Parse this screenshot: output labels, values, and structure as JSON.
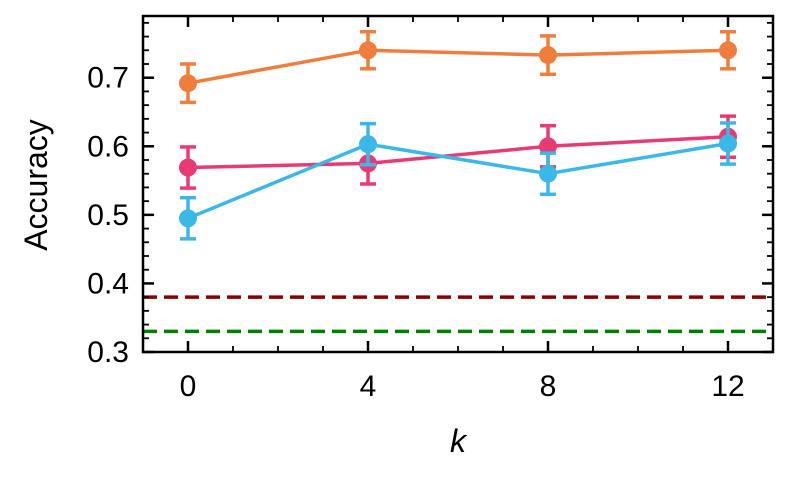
{
  "chart_data": {
    "type": "line",
    "title": "",
    "xlabel": "k",
    "ylabel": "Accuracy",
    "x": [
      0,
      4,
      8,
      12
    ],
    "xticks": [
      0,
      4,
      8,
      12
    ],
    "xtick_labels": [
      "0",
      "4",
      "8",
      "12"
    ],
    "xlim": [
      -1,
      13
    ],
    "yticks": [
      0.3,
      0.4,
      0.5,
      0.6,
      0.7
    ],
    "ytick_labels": [
      "0.3",
      "0.4",
      "0.5",
      "0.6",
      "0.7"
    ],
    "ylim": [
      0.3,
      0.79
    ],
    "grid": false,
    "legend": "none",
    "series": [
      {
        "color": "#ef7d3b",
        "values": [
          0.692,
          0.74,
          0.733,
          0.74
        ],
        "errors": [
          0.028,
          0.027,
          0.028,
          0.027
        ]
      },
      {
        "color": "#e83b74",
        "values": [
          0.569,
          0.575,
          0.6,
          0.614
        ],
        "errors": [
          0.03,
          0.03,
          0.03,
          0.03
        ]
      },
      {
        "color": "#3bb8e8",
        "values": [
          0.495,
          0.603,
          0.56,
          0.604
        ],
        "errors": [
          0.03,
          0.03,
          0.03,
          0.03
        ]
      }
    ],
    "hlines": [
      {
        "y": 0.38,
        "color": "#8b0000",
        "style": "dashed"
      },
      {
        "y": 0.33,
        "color": "#008000",
        "style": "dashed"
      }
    ]
  }
}
